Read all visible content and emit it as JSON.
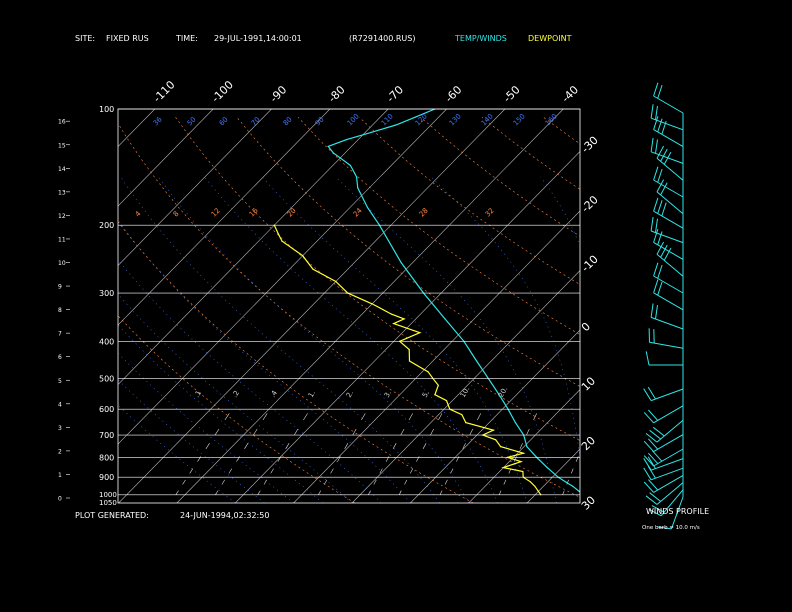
{
  "header": {
    "site_label": "SITE:",
    "site_value": "FIXED RUS",
    "time_label": "TIME:",
    "time_value": "29-JUL-1991,14:00:01",
    "file": "(R7291400.RUS)",
    "temp_legend": "TEMP/WINDS",
    "dew_legend": "DEWPOINT"
  },
  "footer": {
    "generated_label": "PLOT GENERATED:",
    "generated_value": "24-JUN-1994,02:32:50"
  },
  "winds_panel": {
    "title": "WINDS PROFILE",
    "note": "One barb = 10.0 m/s"
  },
  "colors": {
    "background": "#000000",
    "text": "#ffffff",
    "temperature": "#2ee6e6",
    "dewpoint": "#ffff33",
    "isotherm": "#bbbbbb",
    "dry_adiabat": "#ff8844",
    "moist_adiabat": "#4477ff",
    "mixing_ratio": "#dddddd"
  },
  "chart_data": {
    "type": "line",
    "diagram": "skew-T log-P",
    "pressure_axis": {
      "levels": [
        100,
        200,
        300,
        400,
        500,
        600,
        700,
        800,
        900,
        1000
      ],
      "extra_labels": [
        "1000",
        "1050"
      ],
      "range": [
        1050,
        100
      ],
      "scale": "log"
    },
    "height_axis": {
      "unit": "km",
      "ticks": [
        0,
        1,
        2,
        3,
        4,
        5,
        6,
        7,
        8,
        9,
        10,
        11,
        12,
        13,
        14,
        15,
        16
      ]
    },
    "isotherm_labels_top": [
      -110,
      -100,
      -90,
      -80,
      -70,
      -60,
      -50,
      -40
    ],
    "isotherm_labels_right": [
      -30,
      -20,
      -10,
      0,
      10,
      20,
      30
    ],
    "potential_temp_labels": [
      "36",
      "50",
      "60",
      "70",
      "80",
      "90",
      "100",
      "110",
      "120",
      "130",
      "140",
      "150",
      "160"
    ],
    "dry_adiabat_labels_200": [
      "4",
      "8",
      "12",
      "16",
      "20",
      "24",
      "28",
      "32"
    ],
    "mixing_ratio_labels": [
      ".1",
      ".2",
      ".4",
      "1.",
      "2.",
      "3.",
      "5.",
      "10.",
      "20."
    ],
    "series": [
      {
        "name": "TEMP/WINDS",
        "points": [
          [
            1000,
            28.5
          ],
          [
            980,
            27
          ],
          [
            950,
            25
          ],
          [
            925,
            23
          ],
          [
            900,
            21
          ],
          [
            850,
            17.5
          ],
          [
            800,
            14
          ],
          [
            750,
            10.5
          ],
          [
            700,
            8
          ],
          [
            650,
            4.5
          ],
          [
            600,
            1
          ],
          [
            550,
            -3
          ],
          [
            500,
            -7.5
          ],
          [
            450,
            -12.5
          ],
          [
            400,
            -18
          ],
          [
            350,
            -25
          ],
          [
            300,
            -33
          ],
          [
            250,
            -42
          ],
          [
            200,
            -52
          ],
          [
            180,
            -57
          ],
          [
            160,
            -62
          ],
          [
            150,
            -64
          ],
          [
            140,
            -67
          ],
          [
            130,
            -72
          ],
          [
            125,
            -74
          ],
          [
            120,
            -72
          ],
          [
            115,
            -69
          ],
          [
            110,
            -66
          ],
          [
            105,
            -64
          ],
          [
            100,
            -62
          ]
        ]
      },
      {
        "name": "DEWPOINT",
        "points": [
          [
            1000,
            21
          ],
          [
            980,
            20
          ],
          [
            950,
            18.5
          ],
          [
            925,
            17
          ],
          [
            900,
            15
          ],
          [
            870,
            14
          ],
          [
            850,
            10
          ],
          [
            820,
            12
          ],
          [
            800,
            9
          ],
          [
            780,
            11
          ],
          [
            750,
            6
          ],
          [
            720,
            4
          ],
          [
            700,
            1
          ],
          [
            680,
            2
          ],
          [
            650,
            -4
          ],
          [
            620,
            -6
          ],
          [
            600,
            -9
          ],
          [
            570,
            -11
          ],
          [
            550,
            -14
          ],
          [
            520,
            -15
          ],
          [
            500,
            -17
          ],
          [
            480,
            -19
          ],
          [
            450,
            -24
          ],
          [
            420,
            -26
          ],
          [
            400,
            -29
          ],
          [
            380,
            -27
          ],
          [
            360,
            -33
          ],
          [
            350,
            -32
          ],
          [
            340,
            -35
          ],
          [
            320,
            -40
          ],
          [
            300,
            -46
          ],
          [
            280,
            -50
          ],
          [
            260,
            -56
          ],
          [
            240,
            -60
          ],
          [
            220,
            -66
          ],
          [
            210,
            -68
          ],
          [
            200,
            -70
          ]
        ]
      }
    ],
    "winds": [
      {
        "km": 0.0,
        "dir": 200,
        "barbs": 1.5
      },
      {
        "km": 0.3,
        "dir": 220,
        "barbs": 2
      },
      {
        "km": 0.6,
        "dir": 230,
        "barbs": 2
      },
      {
        "km": 0.9,
        "dir": 240,
        "barbs": 2.5
      },
      {
        "km": 1.2,
        "dir": 250,
        "barbs": 2
      },
      {
        "km": 1.6,
        "dir": 250,
        "barbs": 2.5
      },
      {
        "km": 2.0,
        "dir": 240,
        "barbs": 3
      },
      {
        "km": 2.6,
        "dir": 240,
        "barbs": 2.5
      },
      {
        "km": 3.2,
        "dir": 230,
        "barbs": 3
      },
      {
        "km": 3.8,
        "dir": 240,
        "barbs": 2.5
      },
      {
        "km": 4.5,
        "dir": 250,
        "barbs": 2
      },
      {
        "km": 5.5,
        "dir": 270,
        "barbs": 1.5
      },
      {
        "km": 6.2,
        "dir": 280,
        "barbs": 2
      },
      {
        "km": 7.0,
        "dir": 290,
        "barbs": 2
      },
      {
        "km": 7.8,
        "dir": 300,
        "barbs": 2
      },
      {
        "km": 8.5,
        "dir": 300,
        "barbs": 2.5
      },
      {
        "km": 9.2,
        "dir": 310,
        "barbs": 3
      },
      {
        "km": 9.9,
        "dir": 300,
        "barbs": 2
      },
      {
        "km": 10.6,
        "dir": 290,
        "barbs": 2.5
      },
      {
        "km": 11.2,
        "dir": 300,
        "barbs": 3
      },
      {
        "km": 11.8,
        "dir": 310,
        "barbs": 2
      },
      {
        "km": 12.5,
        "dir": 300,
        "barbs": 2.5
      },
      {
        "km": 13.2,
        "dir": 310,
        "barbs": 3
      },
      {
        "km": 13.9,
        "dir": 290,
        "barbs": 2.5
      },
      {
        "km": 14.6,
        "dir": 300,
        "barbs": 3
      },
      {
        "km": 15.3,
        "dir": 290,
        "barbs": 2
      },
      {
        "km": 16.0,
        "dir": 300,
        "barbs": 2.5
      }
    ]
  }
}
